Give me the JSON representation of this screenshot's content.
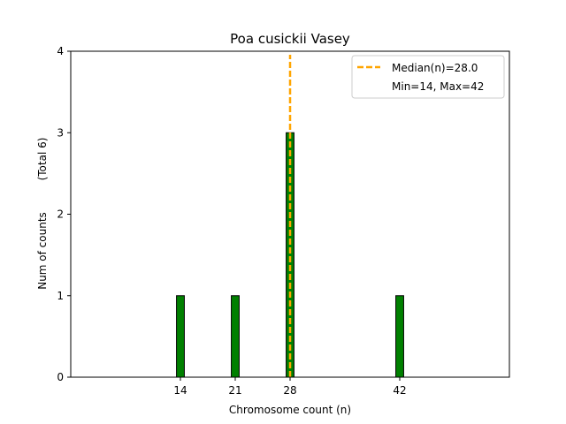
{
  "chart_data": {
    "type": "bar",
    "title": "Poa cusickii Vasey",
    "xlabel": "Chromosome count (n)",
    "ylabel": "Num of counts",
    "ylabel_secondary": "(Total 6)",
    "x": [
      14,
      21,
      28,
      42
    ],
    "values": [
      1,
      1,
      3,
      1
    ],
    "x_ticks": [
      14,
      21,
      28,
      42
    ],
    "y_ticks": [
      0,
      1,
      2,
      3,
      4
    ],
    "xlim": [
      0,
      56
    ],
    "ylim": [
      0,
      4
    ],
    "median": 28.0,
    "legend_position": "top-right",
    "legend": [
      {
        "label": "Median(n)=28.0",
        "style": "dashed-line"
      },
      {
        "label": "Min=14, Max=42",
        "style": "none"
      }
    ],
    "colors": {
      "bar_fill": "#008000",
      "bar_edge": "#000000",
      "median_line": "#FFA500",
      "axis": "#000000",
      "background": "#ffffff"
    }
  }
}
